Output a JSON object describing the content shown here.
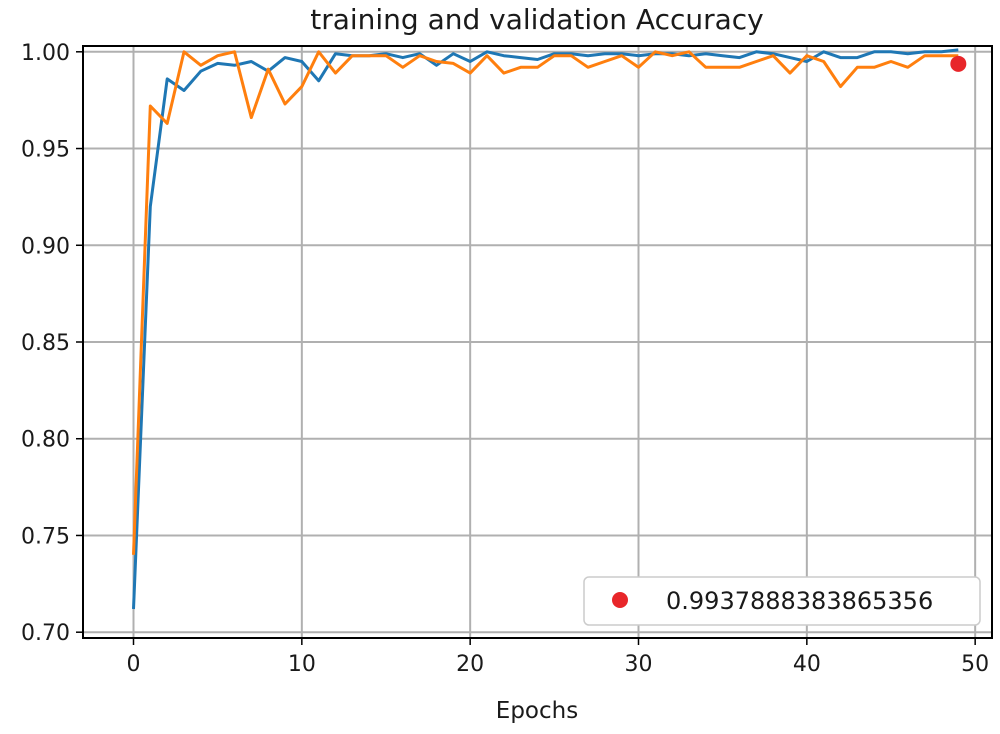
{
  "chart_data": {
    "type": "line",
    "title": "training and validation Accuracy",
    "xlabel": "Epochs",
    "ylabel": "",
    "xlim": [
      -3,
      51
    ],
    "ylim": [
      0.697,
      1.003
    ],
    "grid": true,
    "x_ticks": [
      0,
      10,
      20,
      30,
      40,
      50
    ],
    "y_ticks": [
      0.7,
      0.75,
      0.8,
      0.85,
      0.9,
      0.95,
      1.0
    ],
    "x_tick_labels": [
      "0",
      "10",
      "20",
      "30",
      "40",
      "50"
    ],
    "y_tick_labels": [
      "0.70",
      "0.75",
      "0.80",
      "0.85",
      "0.90",
      "0.95",
      "1.00"
    ],
    "legend_position": "lower-right",
    "legend_label": "0.9937888383865356",
    "series": [
      {
        "color": "#1f77b4",
        "x": [
          0,
          1,
          2,
          3,
          4,
          5,
          6,
          7,
          8,
          9,
          10,
          11,
          12,
          13,
          14,
          15,
          16,
          17,
          18,
          19,
          20,
          21,
          22,
          23,
          24,
          25,
          26,
          27,
          28,
          29,
          30,
          31,
          32,
          33,
          34,
          35,
          36,
          37,
          38,
          39,
          40,
          41,
          42,
          43,
          44,
          45,
          46,
          47,
          48,
          49
        ],
        "values": [
          0.712,
          0.92,
          0.986,
          0.98,
          0.99,
          0.994,
          0.993,
          0.995,
          0.99,
          0.997,
          0.995,
          0.985,
          0.999,
          0.998,
          0.998,
          0.999,
          0.997,
          0.999,
          0.993,
          0.999,
          0.995,
          1.0,
          0.998,
          0.997,
          0.996,
          0.999,
          0.999,
          0.998,
          0.999,
          0.999,
          0.998,
          0.999,
          0.999,
          0.998,
          0.999,
          0.998,
          0.997,
          1.0,
          0.999,
          0.997,
          0.995,
          1.0,
          0.997,
          0.997,
          1.0,
          1.0,
          0.999,
          1.0,
          1.0,
          1.001
        ]
      },
      {
        "color": "#ff7f0e",
        "x": [
          0,
          1,
          2,
          3,
          4,
          5,
          6,
          7,
          8,
          9,
          10,
          11,
          12,
          13,
          14,
          15,
          16,
          17,
          18,
          19,
          20,
          21,
          22,
          23,
          24,
          25,
          26,
          27,
          28,
          29,
          30,
          31,
          32,
          33,
          34,
          35,
          36,
          37,
          38,
          39,
          40,
          41,
          42,
          43,
          44,
          45,
          46,
          47,
          48,
          49
        ],
        "values": [
          0.74,
          0.972,
          0.963,
          1.0,
          0.993,
          0.998,
          1.0,
          0.966,
          0.991,
          0.973,
          0.982,
          1.0,
          0.989,
          0.998,
          0.998,
          0.998,
          0.992,
          0.998,
          0.995,
          0.994,
          0.989,
          0.998,
          0.989,
          0.992,
          0.992,
          0.998,
          0.998,
          0.992,
          0.995,
          0.998,
          0.992,
          1.0,
          0.998,
          1.0,
          0.992,
          0.992,
          0.992,
          0.995,
          0.998,
          0.989,
          0.998,
          0.995,
          0.982,
          0.992,
          0.992,
          0.995,
          0.992,
          0.998,
          0.998,
          0.998
        ]
      }
    ],
    "marker": {
      "x": 49,
      "y": 0.9937888383865356,
      "color": "#e8262a"
    }
  }
}
